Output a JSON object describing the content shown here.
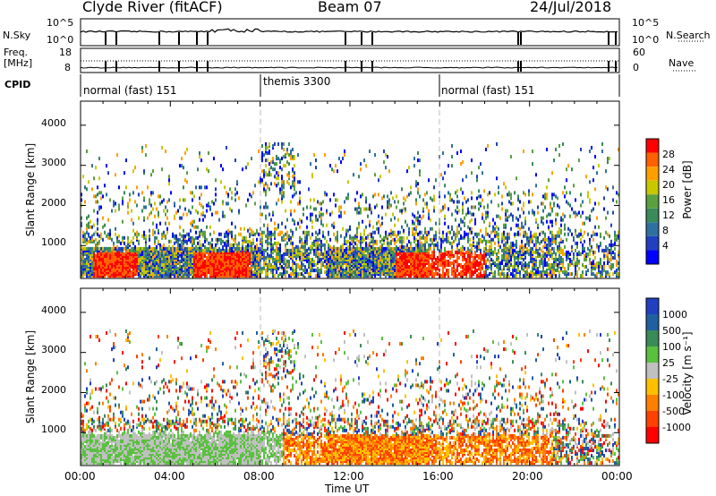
{
  "header": {
    "station": "Clyde River (fitACF)",
    "beam": "Beam 07",
    "date": "24/Jul/2018"
  },
  "top_panels": {
    "nsky_label": "N.Sky",
    "nsearch_label": "N.Search",
    "nsky_ticks": [
      "10^5",
      "10^0"
    ],
    "nsearch_ticks": [
      "10^5",
      "10^0"
    ],
    "freq_label": "Freq.",
    "freq_unit": "[MHz]",
    "freq_ticks": [
      "18",
      "8"
    ],
    "nave_label": "Nave",
    "nave_ticks": [
      "60",
      "0"
    ],
    "cpid_label": "CPID"
  },
  "cpid_segments": [
    {
      "name": "normal (fast) 151",
      "start_hour": 0,
      "end_hour": 8
    },
    {
      "name": "themis 3300",
      "start_hour": 8,
      "end_hour": 16
    },
    {
      "name": "normal (fast) 151",
      "start_hour": 16,
      "end_hour": 24
    }
  ],
  "chart_data": [
    {
      "type": "heatmap",
      "panel": "power",
      "ylabel": "Slant Range [km]",
      "yticks": [
        "1000",
        "2000",
        "3000",
        "4000"
      ],
      "ylim": [
        180,
        4600
      ],
      "xlim": [
        0,
        24
      ],
      "colorbar_label": "Power [dB]",
      "colorbar_ticks": [
        "4",
        "8",
        "12",
        "16",
        "20",
        "24",
        "28"
      ],
      "colorbar_colors": [
        "#0000ff",
        "#2040c0",
        "#3070a0",
        "#3a8a5a",
        "#5aa040",
        "#c8c800",
        "#ffa000",
        "#ff6000",
        "#ff0000"
      ]
    },
    {
      "type": "heatmap",
      "panel": "velocity",
      "ylabel": "Slant Range [km]",
      "yticks": [
        "1000",
        "2000",
        "3000",
        "4000"
      ],
      "ylim": [
        180,
        4600
      ],
      "xlim": [
        0,
        24
      ],
      "xlabel": "Time UT",
      "xticks": [
        "00:00",
        "04:00",
        "08:00",
        "12:00",
        "16:00",
        "20:00",
        "00:00"
      ],
      "colorbar_label": "Velocity [m s⁻¹]",
      "colorbar_ticks": [
        "1000",
        "500",
        "100",
        "25",
        "-25",
        "-100",
        "-500",
        "-1000"
      ],
      "colorbar_colors": [
        "#2040c0",
        "#2060a0",
        "#3a8a5a",
        "#5ac040",
        "#c0c0c0",
        "#ffc000",
        "#ff8000",
        "#ff4000",
        "#ff0000"
      ]
    }
  ]
}
